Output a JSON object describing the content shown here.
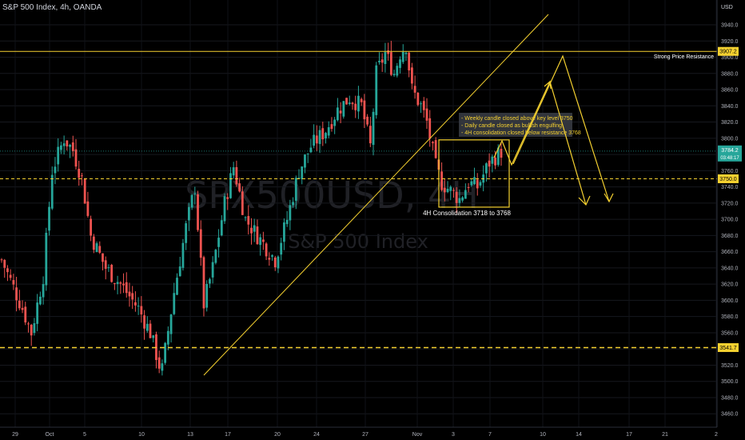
{
  "header": {
    "title": "S&P 500 Index, 4h, OANDA"
  },
  "watermark": {
    "symbol": "SPX500USD, 4H",
    "name": "S&P 500 Index"
  },
  "colors": {
    "up": "#26a69a",
    "down": "#ef5350",
    "annotation": "#f5d130",
    "background": "#000000"
  },
  "chart_data": {
    "type": "candlestick",
    "axis": {
      "currency": "USD",
      "ylim": [
        3450,
        3960
      ]
    },
    "y_ticks": [
      3460,
      3480,
      3500,
      3520,
      3540,
      3560,
      3580,
      3600,
      3620,
      3640,
      3660,
      3680,
      3700,
      3720,
      3740,
      3760,
      3780,
      3800,
      3820,
      3840,
      3860,
      3880,
      3900,
      3920,
      3940
    ],
    "x_ticks": [
      "29",
      "Oct",
      "5",
      "10",
      "13",
      "17",
      "20",
      "24",
      "27",
      "Nov",
      "3",
      "7",
      "10",
      "14",
      "17",
      "21",
      "2"
    ],
    "price_tags": [
      {
        "value": "3907.2",
        "style": "solid"
      },
      {
        "value": "3784.2",
        "sub": "03:48:17",
        "style": "current"
      },
      {
        "value": "3750.0",
        "style": "dashed"
      },
      {
        "value": "3541.7",
        "style": "dashed"
      }
    ],
    "levels": [
      {
        "price": 3907.2,
        "label": "Strong Price Resistance"
      },
      {
        "price": 3750
      },
      {
        "price": 3541.7
      }
    ],
    "annotations": {
      "note_lines": [
        "- Weekly candle closed above key level 3750",
        "- Daily candle closed as bullish engulfing",
        "- 4H consolidation closed below resistance 3768"
      ],
      "box": {
        "label": "4H Consolidation 3718 to 3768",
        "low": 3718,
        "high": 3768
      }
    },
    "path_knots": [
      [
        0,
        3650
      ],
      [
        7,
        3590
      ],
      [
        10,
        3560
      ],
      [
        14,
        3630
      ],
      [
        17,
        3760
      ],
      [
        21,
        3800
      ],
      [
        24,
        3785
      ],
      [
        27,
        3750
      ],
      [
        30,
        3680
      ],
      [
        35,
        3640
      ],
      [
        40,
        3620
      ],
      [
        46,
        3590
      ],
      [
        50,
        3560
      ],
      [
        53,
        3520
      ],
      [
        54,
        3515
      ],
      [
        58,
        3610
      ],
      [
        62,
        3690
      ],
      [
        65,
        3740
      ],
      [
        68,
        3595
      ],
      [
        71,
        3640
      ],
      [
        75,
        3720
      ],
      [
        78,
        3765
      ],
      [
        82,
        3700
      ],
      [
        86,
        3680
      ],
      [
        92,
        3650
      ],
      [
        96,
        3700
      ],
      [
        100,
        3760
      ],
      [
        104,
        3790
      ],
      [
        109,
        3810
      ],
      [
        113,
        3835
      ],
      [
        117,
        3850
      ],
      [
        121,
        3840
      ],
      [
        124,
        3790
      ],
      [
        126,
        3880
      ],
      [
        129,
        3905
      ],
      [
        132,
        3880
      ],
      [
        134,
        3905
      ],
      [
        136,
        3915
      ],
      [
        138,
        3860
      ],
      [
        141,
        3840
      ],
      [
        143,
        3820
      ],
      [
        146,
        3765
      ],
      [
        148,
        3745
      ],
      [
        151,
        3735
      ],
      [
        154,
        3725
      ],
      [
        157,
        3745
      ],
      [
        160,
        3740
      ],
      [
        164,
        3770
      ],
      [
        168,
        3784
      ]
    ]
  }
}
